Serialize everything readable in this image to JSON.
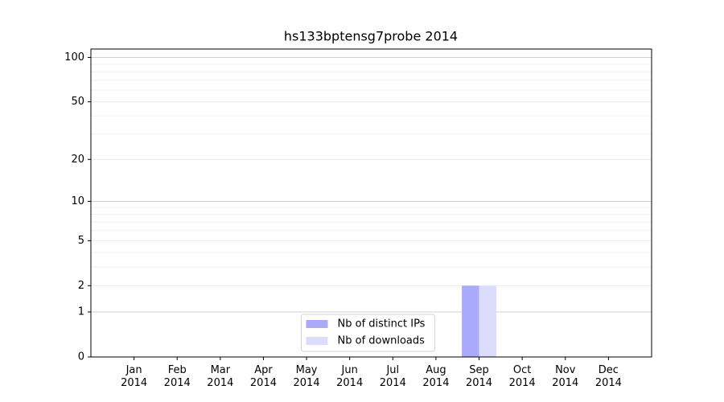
{
  "chart_data": {
    "type": "bar",
    "title": "hs133bptensg7probe 2014",
    "categories": [
      "Jan\n2014",
      "Feb\n2014",
      "Mar\n2014",
      "Apr\n2014",
      "May\n2014",
      "Jun\n2014",
      "Jul\n2014",
      "Aug\n2014",
      "Sep\n2014",
      "Oct\n2014",
      "Nov\n2014",
      "Dec\n2014"
    ],
    "series": [
      {
        "name": "Nb of distinct IPs",
        "color": "#aaaafa",
        "values": [
          0,
          0,
          0,
          0,
          0,
          0,
          0,
          0,
          2,
          0,
          0,
          0
        ]
      },
      {
        "name": "Nb of downloads",
        "color": "#dcdcfc",
        "values": [
          0,
          0,
          0,
          0,
          0,
          0,
          0,
          0,
          2,
          0,
          0,
          0
        ]
      }
    ],
    "yscale": "log1p",
    "ylim": [
      0,
      114
    ],
    "yticks": [
      0,
      1,
      2,
      5,
      10,
      20,
      50,
      100
    ],
    "minor_yticks": [
      3,
      4,
      6,
      7,
      8,
      9,
      30,
      40,
      60,
      70,
      80,
      90
    ],
    "grid": true,
    "legend": "lower center"
  }
}
